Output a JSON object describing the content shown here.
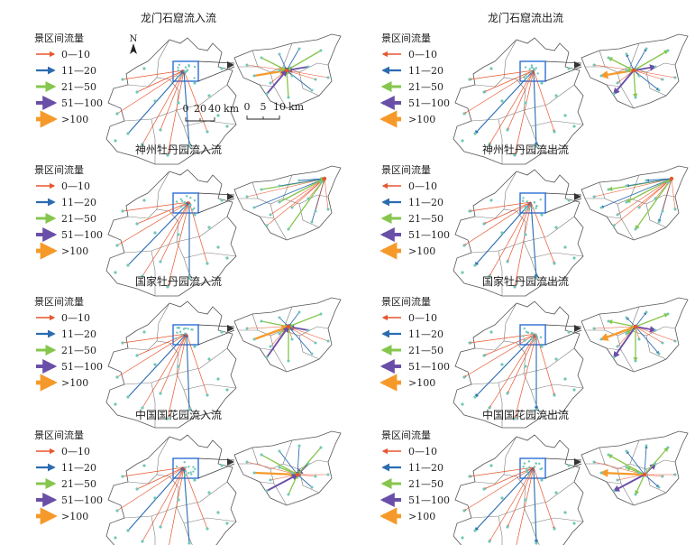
{
  "figure": {
    "colors": {
      "c0_10": "#e8552f",
      "c11_20": "#2b6cb0",
      "c21_50": "#86c64c",
      "c51_100": "#6a4fa8",
      "c100": "#f59a2a",
      "dot": "#6fc7b8",
      "box": "#2c6fd6"
    },
    "legend": {
      "title": "景区间流量",
      "classes": [
        "0—10",
        "11—20",
        "21—50",
        "51—100",
        ">100"
      ]
    },
    "north_label": "N",
    "scalebar_main": {
      "ticks": [
        "0",
        "20",
        "40"
      ],
      "unit": "km"
    },
    "scalebar_zoom": {
      "ticks": [
        "0",
        "5",
        "10"
      ],
      "unit": "km"
    },
    "panels": [
      {
        "title": "龙门石窟流入流",
        "direction": "in"
      },
      {
        "title": "龙门石窟流出流",
        "direction": "out"
      },
      {
        "title": "神州牡丹园流入流",
        "direction": "in"
      },
      {
        "title": "神州牡丹园流出流",
        "direction": "out"
      },
      {
        "title": "国家牡丹园流入流",
        "direction": "in"
      },
      {
        "title": "国家牡丹园流出流",
        "direction": "out"
      },
      {
        "title": "中国国花园流入流",
        "direction": "in"
      },
      {
        "title": "中国国花园流出流",
        "direction": "out"
      }
    ]
  }
}
